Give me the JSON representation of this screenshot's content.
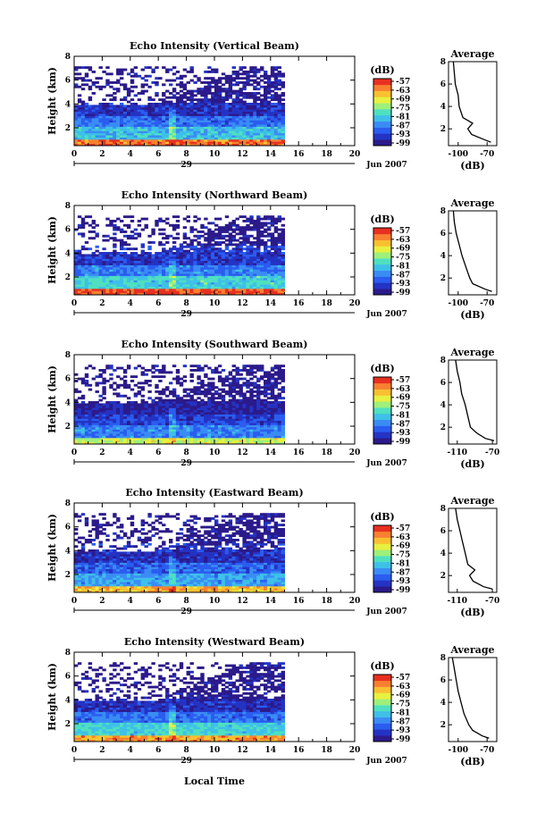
{
  "figure": {
    "xlabel_global": "Local Time",
    "date_label": "Jun 2007",
    "day_label": "29",
    "x_ticks": [
      "0",
      "2",
      "4",
      "6",
      "8",
      "10",
      "12",
      "14",
      "16",
      "18",
      "20"
    ],
    "y_ticks": [
      "2",
      "4",
      "6",
      "8"
    ],
    "ylabel": "Height (km)",
    "colorbar_unit": "(dB)",
    "colorbar_ticks": [
      "-57",
      "-63",
      "-69",
      "-75",
      "-81",
      "-87",
      "-93",
      "-99"
    ],
    "avg_title": "Average",
    "avg_xlabel": "(dB)",
    "colors": {
      "colormap": [
        "#2b1a8a",
        "#2433c4",
        "#2a5cf0",
        "#3a8cf5",
        "#3ec0e8",
        "#4fe0c0",
        "#9ef07a",
        "#e8f040",
        "#f8c030",
        "#f88030",
        "#e83020"
      ]
    }
  },
  "chart_data": [
    {
      "type": "heatmap",
      "title": "Echo Intensity (Vertical Beam)",
      "xlabel": "Local Time",
      "ylabel": "Height (km)",
      "xlim": [
        0,
        20
      ],
      "ylim": [
        0.5,
        8
      ],
      "data_time_range": [
        0,
        15
      ],
      "colorbar": {
        "label": "(dB)",
        "range": [
          -99,
          -57
        ],
        "ticks": [
          -57,
          -63,
          -69,
          -75,
          -81,
          -87,
          -93,
          -99
        ]
      },
      "bands": [
        {
          "height_km": [
            0.5,
            1.0
          ],
          "value_db": -62
        },
        {
          "height_km": [
            1.0,
            2.0
          ],
          "value_db": -82
        },
        {
          "height_km": [
            2.0,
            3.0
          ],
          "value_db": -88
        },
        {
          "height_km": [
            3.0,
            4.0
          ],
          "value_db": -94
        },
        {
          "height_km": [
            4.0,
            7.0
          ],
          "value_db": -98
        }
      ],
      "average": {
        "title": "Average",
        "xlabel": "(dB)",
        "x_ticks": [
          -100,
          -70
        ],
        "xlim": [
          -110,
          -60
        ],
        "y_ticks": [
          2,
          4,
          6,
          8
        ],
        "height_km": [
          0.8,
          1.0,
          1.5,
          2.0,
          2.5,
          3.0,
          3.5,
          4.0,
          5.0,
          6.0,
          7.0,
          8.0
        ],
        "value_db": [
          -66,
          -72,
          -86,
          -90,
          -85,
          -95,
          -97,
          -99,
          -100,
          -103,
          -104,
          -105
        ]
      }
    },
    {
      "type": "heatmap",
      "title": "Echo Intensity (Northward Beam)",
      "xlabel": "Local Time",
      "ylabel": "Height (km)",
      "xlim": [
        0,
        20
      ],
      "ylim": [
        0.5,
        8
      ],
      "data_time_range": [
        0,
        15
      ],
      "colorbar": {
        "label": "(dB)",
        "range": [
          -99,
          -57
        ],
        "ticks": [
          -57,
          -63,
          -69,
          -75,
          -81,
          -87,
          -93,
          -99
        ]
      },
      "bands": [
        {
          "height_km": [
            0.5,
            1.0
          ],
          "value_db": -60
        },
        {
          "height_km": [
            1.0,
            2.0
          ],
          "value_db": -80
        },
        {
          "height_km": [
            2.0,
            3.0
          ],
          "value_db": -87
        },
        {
          "height_km": [
            3.0,
            4.5
          ],
          "value_db": -93
        },
        {
          "height_km": [
            4.5,
            7.0
          ],
          "value_db": -98
        }
      ],
      "average": {
        "title": "Average",
        "xlabel": "(dB)",
        "x_ticks": [
          -100,
          -70
        ],
        "xlim": [
          -110,
          -60
        ],
        "y_ticks": [
          2,
          4,
          6,
          8
        ],
        "height_km": [
          0.8,
          1.0,
          1.5,
          2.0,
          3.0,
          4.0,
          5.0,
          6.0,
          7.0,
          8.0
        ],
        "value_db": [
          -65,
          -72,
          -85,
          -88,
          -92,
          -96,
          -99,
          -102,
          -104,
          -105
        ]
      }
    },
    {
      "type": "heatmap",
      "title": "Echo Intensity (Southward Beam)",
      "xlabel": "Local Time",
      "ylabel": "Height (km)",
      "xlim": [
        0,
        20
      ],
      "ylim": [
        0.5,
        8
      ],
      "data_time_range": [
        0,
        15
      ],
      "colorbar": {
        "label": "(dB)",
        "range": [
          -99,
          -57
        ],
        "ticks": [
          -57,
          -63,
          -69,
          -75,
          -81,
          -87,
          -93,
          -99
        ]
      },
      "bands": [
        {
          "height_km": [
            0.5,
            1.0
          ],
          "value_db": -72
        },
        {
          "height_km": [
            1.0,
            2.0
          ],
          "value_db": -87
        },
        {
          "height_km": [
            2.0,
            3.0
          ],
          "value_db": -92
        },
        {
          "height_km": [
            3.0,
            4.0
          ],
          "value_db": -96
        },
        {
          "height_km": [
            4.0,
            7.0
          ],
          "value_db": -98
        }
      ],
      "average": {
        "title": "Average",
        "xlabel": "(dB)",
        "x_ticks": [
          -110,
          -70
        ],
        "xlim": [
          -120,
          -65
        ],
        "y_ticks": [
          2,
          4,
          6,
          8
        ],
        "height_km": [
          0.8,
          1.0,
          1.5,
          2.0,
          3.0,
          4.0,
          5.0,
          6.0,
          7.0,
          8.0
        ],
        "value_db": [
          -68,
          -78,
          -88,
          -95,
          -98,
          -101,
          -105,
          -107,
          -110,
          -112
        ]
      }
    },
    {
      "type": "heatmap",
      "title": "Echo Intensity (Eastward Beam)",
      "xlabel": "Local Time",
      "ylabel": "Height (km)",
      "xlim": [
        0,
        20
      ],
      "ylim": [
        0.5,
        8
      ],
      "data_time_range": [
        0,
        15
      ],
      "colorbar": {
        "label": "(dB)",
        "range": [
          -99,
          -57
        ],
        "ticks": [
          -57,
          -63,
          -69,
          -75,
          -81,
          -87,
          -93,
          -99
        ]
      },
      "bands": [
        {
          "height_km": [
            0.5,
            1.0
          ],
          "value_db": -66
        },
        {
          "height_km": [
            1.0,
            2.0
          ],
          "value_db": -84
        },
        {
          "height_km": [
            2.0,
            3.0
          ],
          "value_db": -89
        },
        {
          "height_km": [
            3.0,
            4.5
          ],
          "value_db": -94
        },
        {
          "height_km": [
            4.5,
            7.0
          ],
          "value_db": -98
        }
      ],
      "average": {
        "title": "Average",
        "xlabel": "(dB)",
        "x_ticks": [
          -110,
          -70
        ],
        "xlim": [
          -120,
          -65
        ],
        "y_ticks": [
          2,
          4,
          6,
          8
        ],
        "height_km": [
          0.8,
          1.0,
          1.5,
          2.0,
          2.5,
          3.0,
          4.0,
          5.0,
          6.0,
          7.0,
          8.0
        ],
        "value_db": [
          -70,
          -80,
          -92,
          -96,
          -90,
          -98,
          -101,
          -104,
          -107,
          -110,
          -112
        ]
      }
    },
    {
      "type": "heatmap",
      "title": "Echo Intensity (Westward Beam)",
      "xlabel": "Local Time",
      "ylabel": "Height (km)",
      "xlim": [
        0,
        20
      ],
      "ylim": [
        0.5,
        8
      ],
      "data_time_range": [
        0,
        15
      ],
      "colorbar": {
        "label": "(dB)",
        "range": [
          -99,
          -57
        ],
        "ticks": [
          -57,
          -63,
          -69,
          -75,
          -81,
          -87,
          -93,
          -99
        ]
      },
      "bands": [
        {
          "height_km": [
            0.5,
            1.0
          ],
          "value_db": -64
        },
        {
          "height_km": [
            1.0,
            2.0
          ],
          "value_db": -80
        },
        {
          "height_km": [
            2.0,
            3.0
          ],
          "value_db": -88
        },
        {
          "height_km": [
            3.0,
            4.0
          ],
          "value_db": -94
        },
        {
          "height_km": [
            4.0,
            7.0
          ],
          "value_db": -98
        }
      ],
      "average": {
        "title": "Average",
        "xlabel": "(dB)",
        "x_ticks": [
          -100,
          -70
        ],
        "xlim": [
          -110,
          -60
        ],
        "y_ticks": [
          2,
          4,
          6,
          8
        ],
        "height_km": [
          0.8,
          1.0,
          1.5,
          2.0,
          3.0,
          4.0,
          5.0,
          6.0,
          7.0,
          8.0
        ],
        "value_db": [
          -68,
          -75,
          -85,
          -89,
          -94,
          -97,
          -100,
          -102,
          -104,
          -106
        ]
      }
    }
  ]
}
